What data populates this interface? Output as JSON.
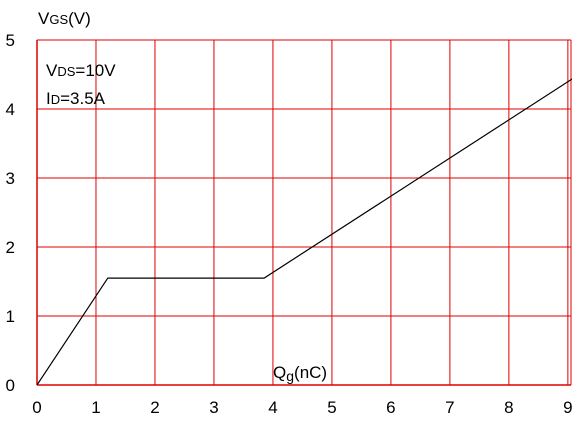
{
  "chart_data": {
    "type": "line",
    "ylabel_parts": [
      "V",
      "GS",
      "(V)"
    ],
    "xlabel_parts": [
      "Q",
      "g",
      "(nC)"
    ],
    "annotations": [
      {
        "parts": [
          "V",
          "DS",
          "=10V"
        ]
      },
      {
        "parts": [
          "I",
          "D",
          "=3.5A"
        ]
      }
    ],
    "xlim": [
      0,
      9
    ],
    "ylim": [
      0,
      5
    ],
    "x_ticks": [
      "0",
      "1",
      "2",
      "3",
      "4",
      "5",
      "6",
      "7",
      "8",
      "9"
    ],
    "y_ticks": [
      "0",
      "1",
      "2",
      "3",
      "4",
      "5"
    ],
    "grid": true,
    "series": [
      {
        "x": [
          0,
          1.2,
          3.85,
          9.1
        ],
        "y": [
          0,
          1.55,
          1.55,
          4.45
        ]
      }
    ],
    "colors": {
      "grid": "#dd0000",
      "line": "#000000",
      "text": "#000000"
    }
  }
}
